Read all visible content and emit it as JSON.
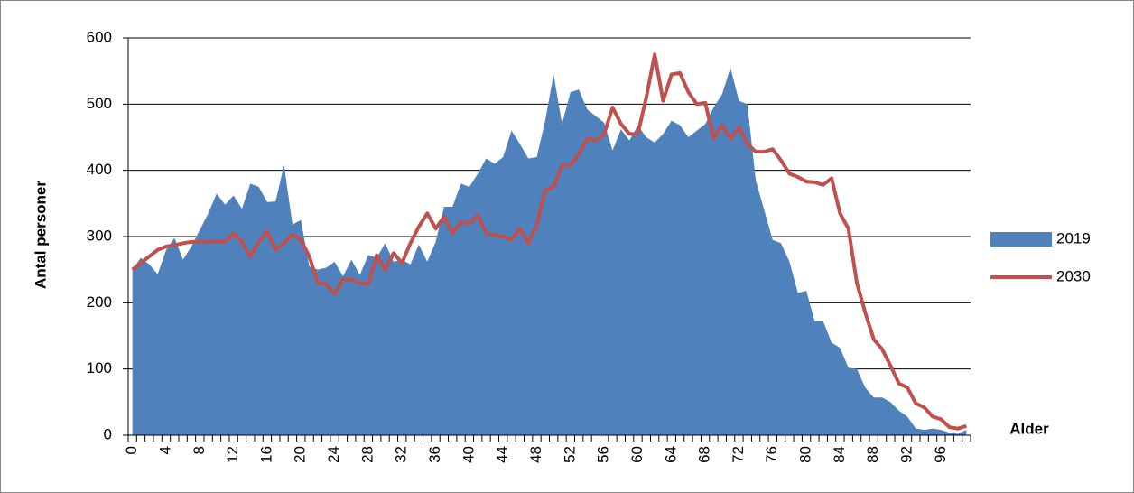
{
  "chart_data": {
    "type": "area",
    "x_label": "Alder",
    "y_label": "Antal personer",
    "categories": [
      "0",
      null,
      null,
      null,
      "4",
      null,
      null,
      null,
      "8",
      null,
      null,
      null,
      "12",
      null,
      null,
      null,
      "16",
      null,
      null,
      null,
      "20",
      null,
      null,
      null,
      "24",
      null,
      null,
      null,
      "28",
      null,
      null,
      null,
      "32",
      null,
      null,
      null,
      "36",
      null,
      null,
      null,
      "40",
      null,
      null,
      null,
      "44",
      null,
      null,
      null,
      "48",
      null,
      null,
      null,
      "52",
      null,
      null,
      null,
      "56",
      null,
      null,
      null,
      "60",
      null,
      null,
      null,
      "64",
      null,
      null,
      null,
      "68",
      null,
      null,
      null,
      "72",
      null,
      null,
      null,
      "76",
      null,
      null,
      null,
      "80",
      null,
      null,
      null,
      "84",
      null,
      null,
      null,
      "88",
      null,
      null,
      null,
      "92",
      null,
      null,
      null,
      "96",
      null,
      null,
      null
    ],
    "series": [
      {
        "name": "2019",
        "type": "area",
        "color": "#4f81bd",
        "values": [
          250,
          268,
          258,
          243,
          280,
          298,
          265,
          285,
          310,
          335,
          365,
          348,
          362,
          342,
          380,
          375,
          352,
          353,
          408,
          318,
          325,
          255,
          250,
          253,
          262,
          240,
          265,
          242,
          272,
          268,
          290,
          262,
          265,
          258,
          288,
          262,
          292,
          345,
          345,
          380,
          375,
          395,
          418,
          410,
          420,
          460,
          440,
          418,
          420,
          475,
          545,
          470,
          518,
          522,
          492,
          482,
          472,
          430,
          462,
          445,
          468,
          450,
          442,
          455,
          475,
          468,
          450,
          460,
          470,
          495,
          515,
          555,
          505,
          500,
          385,
          340,
          295,
          290,
          262,
          215,
          218,
          172,
          172,
          140,
          132,
          102,
          100,
          72,
          57,
          57,
          50,
          37,
          28,
          10,
          8,
          10,
          8,
          4,
          2,
          8
        ]
      },
      {
        "name": "2030",
        "type": "line",
        "color": "#c0504d",
        "values": [
          250,
          260,
          270,
          280,
          285,
          287,
          290,
          292,
          292,
          292,
          293,
          292,
          305,
          292,
          270,
          292,
          308,
          280,
          290,
          303,
          295,
          270,
          230,
          228,
          213,
          235,
          235,
          230,
          228,
          272,
          250,
          275,
          260,
          290,
          315,
          335,
          312,
          330,
          305,
          322,
          320,
          332,
          305,
          302,
          300,
          295,
          312,
          290,
          318,
          370,
          375,
          408,
          408,
          425,
          448,
          445,
          455,
          495,
          470,
          455,
          455,
          510,
          575,
          505,
          545,
          547,
          518,
          500,
          502,
          448,
          468,
          448,
          465,
          440,
          428,
          428,
          432,
          415,
          395,
          390,
          383,
          382,
          378,
          388,
          335,
          312,
          230,
          185,
          145,
          130,
          105,
          78,
          72,
          48,
          42,
          28,
          24,
          12,
          10,
          14
        ]
      }
    ],
    "ylim": [
      0,
      600
    ],
    "yticks": [
      0,
      100,
      200,
      300,
      400,
      500,
      600
    ],
    "grid": true,
    "legend": "right"
  }
}
